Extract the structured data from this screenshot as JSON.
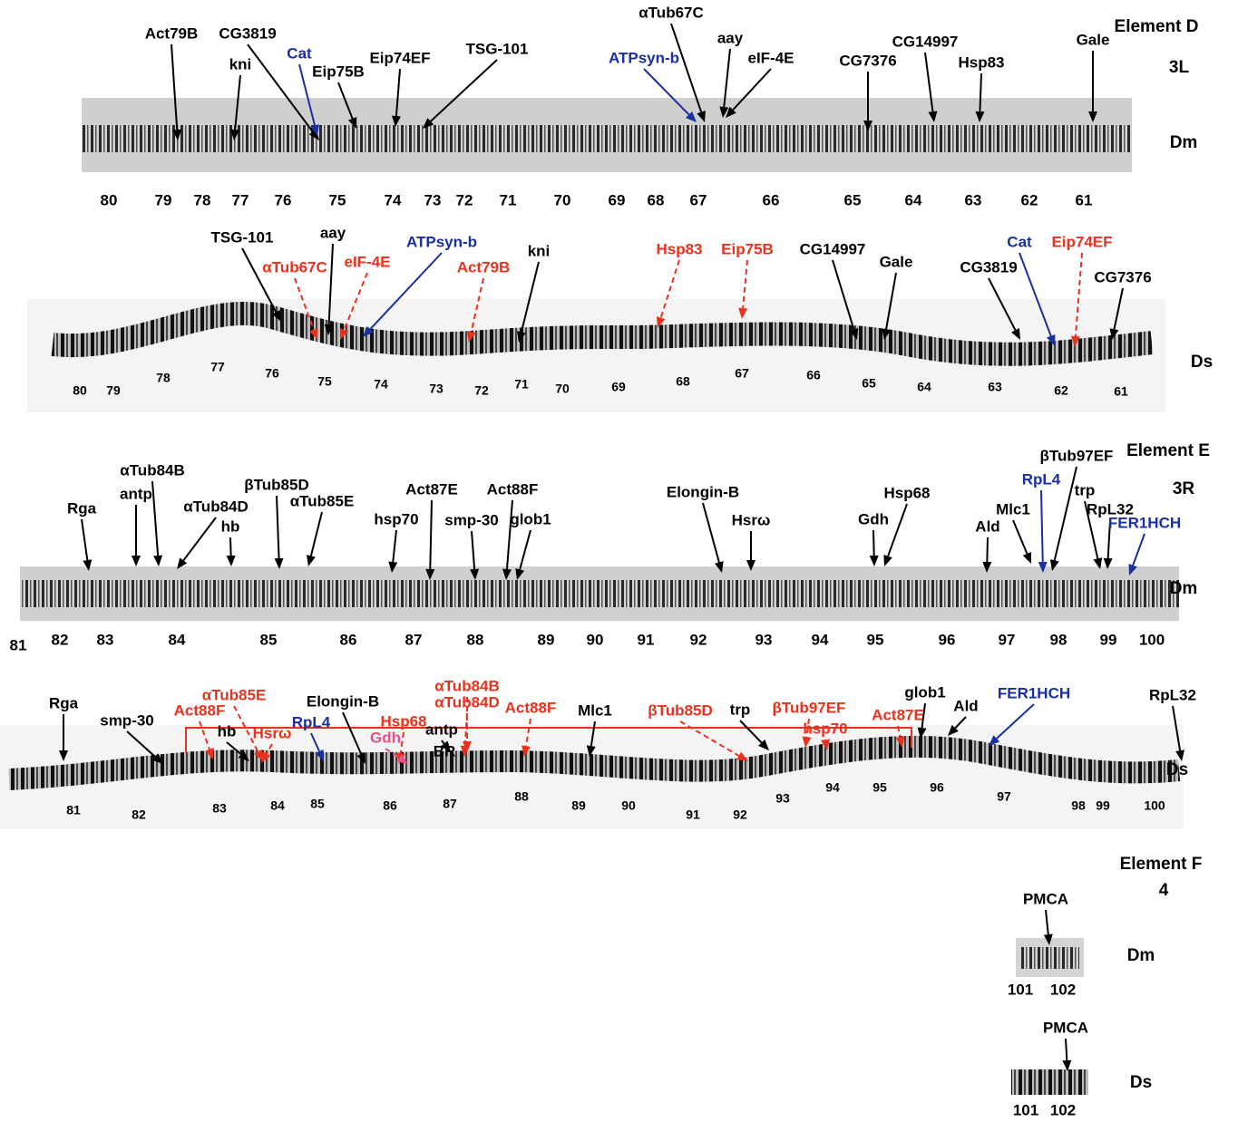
{
  "element_d": {
    "title": "Element D",
    "arm": "3L",
    "dm": {
      "label": "Dm",
      "genes": [
        {
          "text": "Act79B",
          "color": "#000000"
        },
        {
          "text": "CG3819",
          "color": "#000000"
        },
        {
          "text": "Cat",
          "color": "#1a2fa0"
        },
        {
          "text": "kni",
          "color": "#000000"
        },
        {
          "text": "Eip75B",
          "color": "#000000"
        },
        {
          "text": "Eip74EF",
          "color": "#000000"
        },
        {
          "text": "TSG-101",
          "color": "#000000"
        },
        {
          "text": "ATPsyn-b",
          "color": "#1a2fa0"
        },
        {
          "text": "αTub67C",
          "color": "#000000"
        },
        {
          "text": "aay",
          "color": "#000000"
        },
        {
          "text": "eIF-4E",
          "color": "#000000"
        },
        {
          "text": "CG7376",
          "color": "#000000"
        },
        {
          "text": "CG14997",
          "color": "#000000"
        },
        {
          "text": "Hsp83",
          "color": "#000000"
        },
        {
          "text": "Gale",
          "color": "#000000"
        }
      ],
      "bands": [
        "80",
        "79",
        "78",
        "77",
        "76",
        "75",
        "74",
        "73",
        "72",
        "71",
        "70",
        "69",
        "68",
        "67",
        "66",
        "65",
        "64",
        "63",
        "62",
        "61"
      ]
    },
    "ds": {
      "label": "Ds",
      "genes": [
        {
          "text": "TSG-101",
          "color": "#000000"
        },
        {
          "text": "aay",
          "color": "#000000"
        },
        {
          "text": "αTub67C",
          "color": "#e8321e"
        },
        {
          "text": "eIF-4E",
          "color": "#e8321e"
        },
        {
          "text": "ATPsyn-b",
          "color": "#1a2fa0"
        },
        {
          "text": "Act79B",
          "color": "#e8321e"
        },
        {
          "text": "kni",
          "color": "#000000"
        },
        {
          "text": "Hsp83",
          "color": "#e8321e"
        },
        {
          "text": "Eip75B",
          "color": "#e8321e"
        },
        {
          "text": "CG14997",
          "color": "#000000"
        },
        {
          "text": "Gale",
          "color": "#000000"
        },
        {
          "text": "CG3819",
          "color": "#000000"
        },
        {
          "text": "Cat",
          "color": "#1a2fa0"
        },
        {
          "text": "Eip74EF",
          "color": "#e8321e"
        },
        {
          "text": "CG7376",
          "color": "#000000"
        }
      ],
      "bands": [
        "80",
        "79",
        "78",
        "77",
        "76",
        "75",
        "74",
        "73",
        "72",
        "71",
        "70",
        "69",
        "68",
        "67",
        "66",
        "65",
        "64",
        "63",
        "62",
        "61"
      ]
    }
  },
  "element_e": {
    "title": "Element E",
    "arm": "3R",
    "dm": {
      "label": "Dm",
      "genes": [
        {
          "text": "Rga",
          "color": "#000000"
        },
        {
          "text": "antp",
          "color": "#000000"
        },
        {
          "text": "αTub84B",
          "color": "#000000"
        },
        {
          "text": "αTub84D",
          "color": "#000000"
        },
        {
          "text": "hb",
          "color": "#000000"
        },
        {
          "text": "βTub85D",
          "color": "#000000"
        },
        {
          "text": "αTub85E",
          "color": "#000000"
        },
        {
          "text": "hsp70",
          "color": "#000000"
        },
        {
          "text": "Act87E",
          "color": "#000000"
        },
        {
          "text": "smp-30",
          "color": "#000000"
        },
        {
          "text": "Act88F",
          "color": "#000000"
        },
        {
          "text": "glob1",
          "color": "#000000"
        },
        {
          "text": "Elongin-B",
          "color": "#000000"
        },
        {
          "text": "Hsrω",
          "color": "#000000"
        },
        {
          "text": "Gdh",
          "color": "#000000"
        },
        {
          "text": "Hsp68",
          "color": "#000000"
        },
        {
          "text": "Ald",
          "color": "#000000"
        },
        {
          "text": "Mlc1",
          "color": "#000000"
        },
        {
          "text": "βTub97EF",
          "color": "#000000"
        },
        {
          "text": "RpL4",
          "color": "#1a2fa0"
        },
        {
          "text": "trp",
          "color": "#000000"
        },
        {
          "text": "RpL32",
          "color": "#000000"
        },
        {
          "text": "FER1HCH",
          "color": "#1a2fa0"
        }
      ],
      "bands": [
        "81",
        "82",
        "83",
        "84",
        "85",
        "86",
        "87",
        "88",
        "89",
        "90",
        "91",
        "92",
        "93",
        "94",
        "95",
        "96",
        "97",
        "98",
        "99",
        "100"
      ]
    },
    "ds": {
      "label": "Ds",
      "genes": [
        {
          "text": "Rga",
          "color": "#000000"
        },
        {
          "text": "smp-30",
          "color": "#000000"
        },
        {
          "text": "Act88F",
          "color": "#e8321e"
        },
        {
          "text": "αTub85E",
          "color": "#e8321e"
        },
        {
          "text": "hb",
          "color": "#000000"
        },
        {
          "text": "Hsrω",
          "color": "#e8321e"
        },
        {
          "text": "RpL4",
          "color": "#1a2fa0"
        },
        {
          "text": "Elongin-B",
          "color": "#000000"
        },
        {
          "text": "Hsp68",
          "color": "#e8321e"
        },
        {
          "text": "Gdh",
          "color": "#e8508a"
        },
        {
          "text": "αTub84B",
          "color": "#e8321e"
        },
        {
          "text": "αTub84D",
          "color": "#e8321e"
        },
        {
          "text": "antp",
          "color": "#000000"
        },
        {
          "text": "BR",
          "color": "#000000"
        },
        {
          "text": "Act88F",
          "color": "#e8321e"
        },
        {
          "text": "Mlc1",
          "color": "#000000"
        },
        {
          "text": "βTub85D",
          "color": "#e8321e"
        },
        {
          "text": "trp",
          "color": "#000000"
        },
        {
          "text": "βTub97EF",
          "color": "#e8321e"
        },
        {
          "text": "hsp70",
          "color": "#e8321e"
        },
        {
          "text": "Act87E",
          "color": "#e8321e"
        },
        {
          "text": "glob1",
          "color": "#000000"
        },
        {
          "text": "Ald",
          "color": "#000000"
        },
        {
          "text": "FER1HCH",
          "color": "#1a2fa0"
        },
        {
          "text": "RpL32",
          "color": "#000000"
        }
      ],
      "bands": [
        "81",
        "82",
        "83",
        "84",
        "85",
        "86",
        "87",
        "88",
        "89",
        "90",
        "91",
        "92",
        "93",
        "94",
        "95",
        "96",
        "97",
        "98",
        "99",
        "100"
      ]
    }
  },
  "element_f": {
    "title": "Element F",
    "arm": "4",
    "dm": {
      "label": "Dm",
      "genes": [
        {
          "text": "PMCA",
          "color": "#000000"
        }
      ],
      "bands": [
        "101",
        "102"
      ]
    },
    "ds": {
      "label": "Ds",
      "genes": [
        {
          "text": "PMCA",
          "color": "#000000"
        }
      ],
      "bands": [
        "101",
        "102"
      ]
    }
  }
}
